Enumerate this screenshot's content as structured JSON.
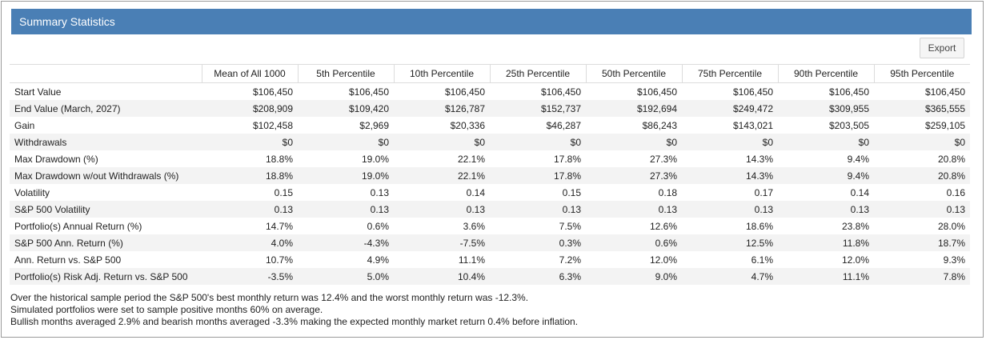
{
  "header": {
    "title": "Summary Statistics"
  },
  "toolbar": {
    "export_label": "Export"
  },
  "table": {
    "columns": [
      "",
      "Mean of All 1000",
      "5th Percentile",
      "10th Percentile",
      "25th Percentile",
      "50th Percentile",
      "75th Percentile",
      "90th Percentile",
      "95th Percentile"
    ],
    "rows": [
      [
        "Start Value",
        "$106,450",
        "$106,450",
        "$106,450",
        "$106,450",
        "$106,450",
        "$106,450",
        "$106,450",
        "$106,450"
      ],
      [
        "End Value (March, 2027)",
        "$208,909",
        "$109,420",
        "$126,787",
        "$152,737",
        "$192,694",
        "$249,472",
        "$309,955",
        "$365,555"
      ],
      [
        "Gain",
        "$102,458",
        "$2,969",
        "$20,336",
        "$46,287",
        "$86,243",
        "$143,021",
        "$203,505",
        "$259,105"
      ],
      [
        "Withdrawals",
        "$0",
        "$0",
        "$0",
        "$0",
        "$0",
        "$0",
        "$0",
        "$0"
      ],
      [
        "Max Drawdown (%)",
        "18.8%",
        "19.0%",
        "22.1%",
        "17.8%",
        "27.3%",
        "14.3%",
        "9.4%",
        "20.8%"
      ],
      [
        "Max Drawdown w/out Withdrawals (%)",
        "18.8%",
        "19.0%",
        "22.1%",
        "17.8%",
        "27.3%",
        "14.3%",
        "9.4%",
        "20.8%"
      ],
      [
        "Volatility",
        "0.15",
        "0.13",
        "0.14",
        "0.15",
        "0.18",
        "0.17",
        "0.14",
        "0.16"
      ],
      [
        "S&P 500 Volatility",
        "0.13",
        "0.13",
        "0.13",
        "0.13",
        "0.13",
        "0.13",
        "0.13",
        "0.13"
      ],
      [
        "Portfolio(s) Annual Return (%)",
        "14.7%",
        "0.6%",
        "3.6%",
        "7.5%",
        "12.6%",
        "18.6%",
        "23.8%",
        "28.0%"
      ],
      [
        "S&P 500 Ann. Return (%)",
        "4.0%",
        "-4.3%",
        "-7.5%",
        "0.3%",
        "0.6%",
        "12.5%",
        "11.8%",
        "18.7%"
      ],
      [
        "Ann. Return vs. S&P 500",
        "10.7%",
        "4.9%",
        "11.1%",
        "7.2%",
        "12.0%",
        "6.1%",
        "12.0%",
        "9.3%"
      ],
      [
        "Portfolio(s) Risk Adj. Return vs. S&P 500",
        "-3.5%",
        "5.0%",
        "10.4%",
        "6.3%",
        "9.0%",
        "4.7%",
        "11.1%",
        "7.8%"
      ]
    ]
  },
  "notes": [
    "Over the historical sample period the S&P 500's best monthly return was 12.4% and the worst monthly return was -12.3%.",
    "Simulated portfolios were set to sample positive months 60% on average.",
    "Bullish months averaged 2.9% and bearish months averaged -3.3% making the expected monthly market return 0.4% before inflation."
  ]
}
